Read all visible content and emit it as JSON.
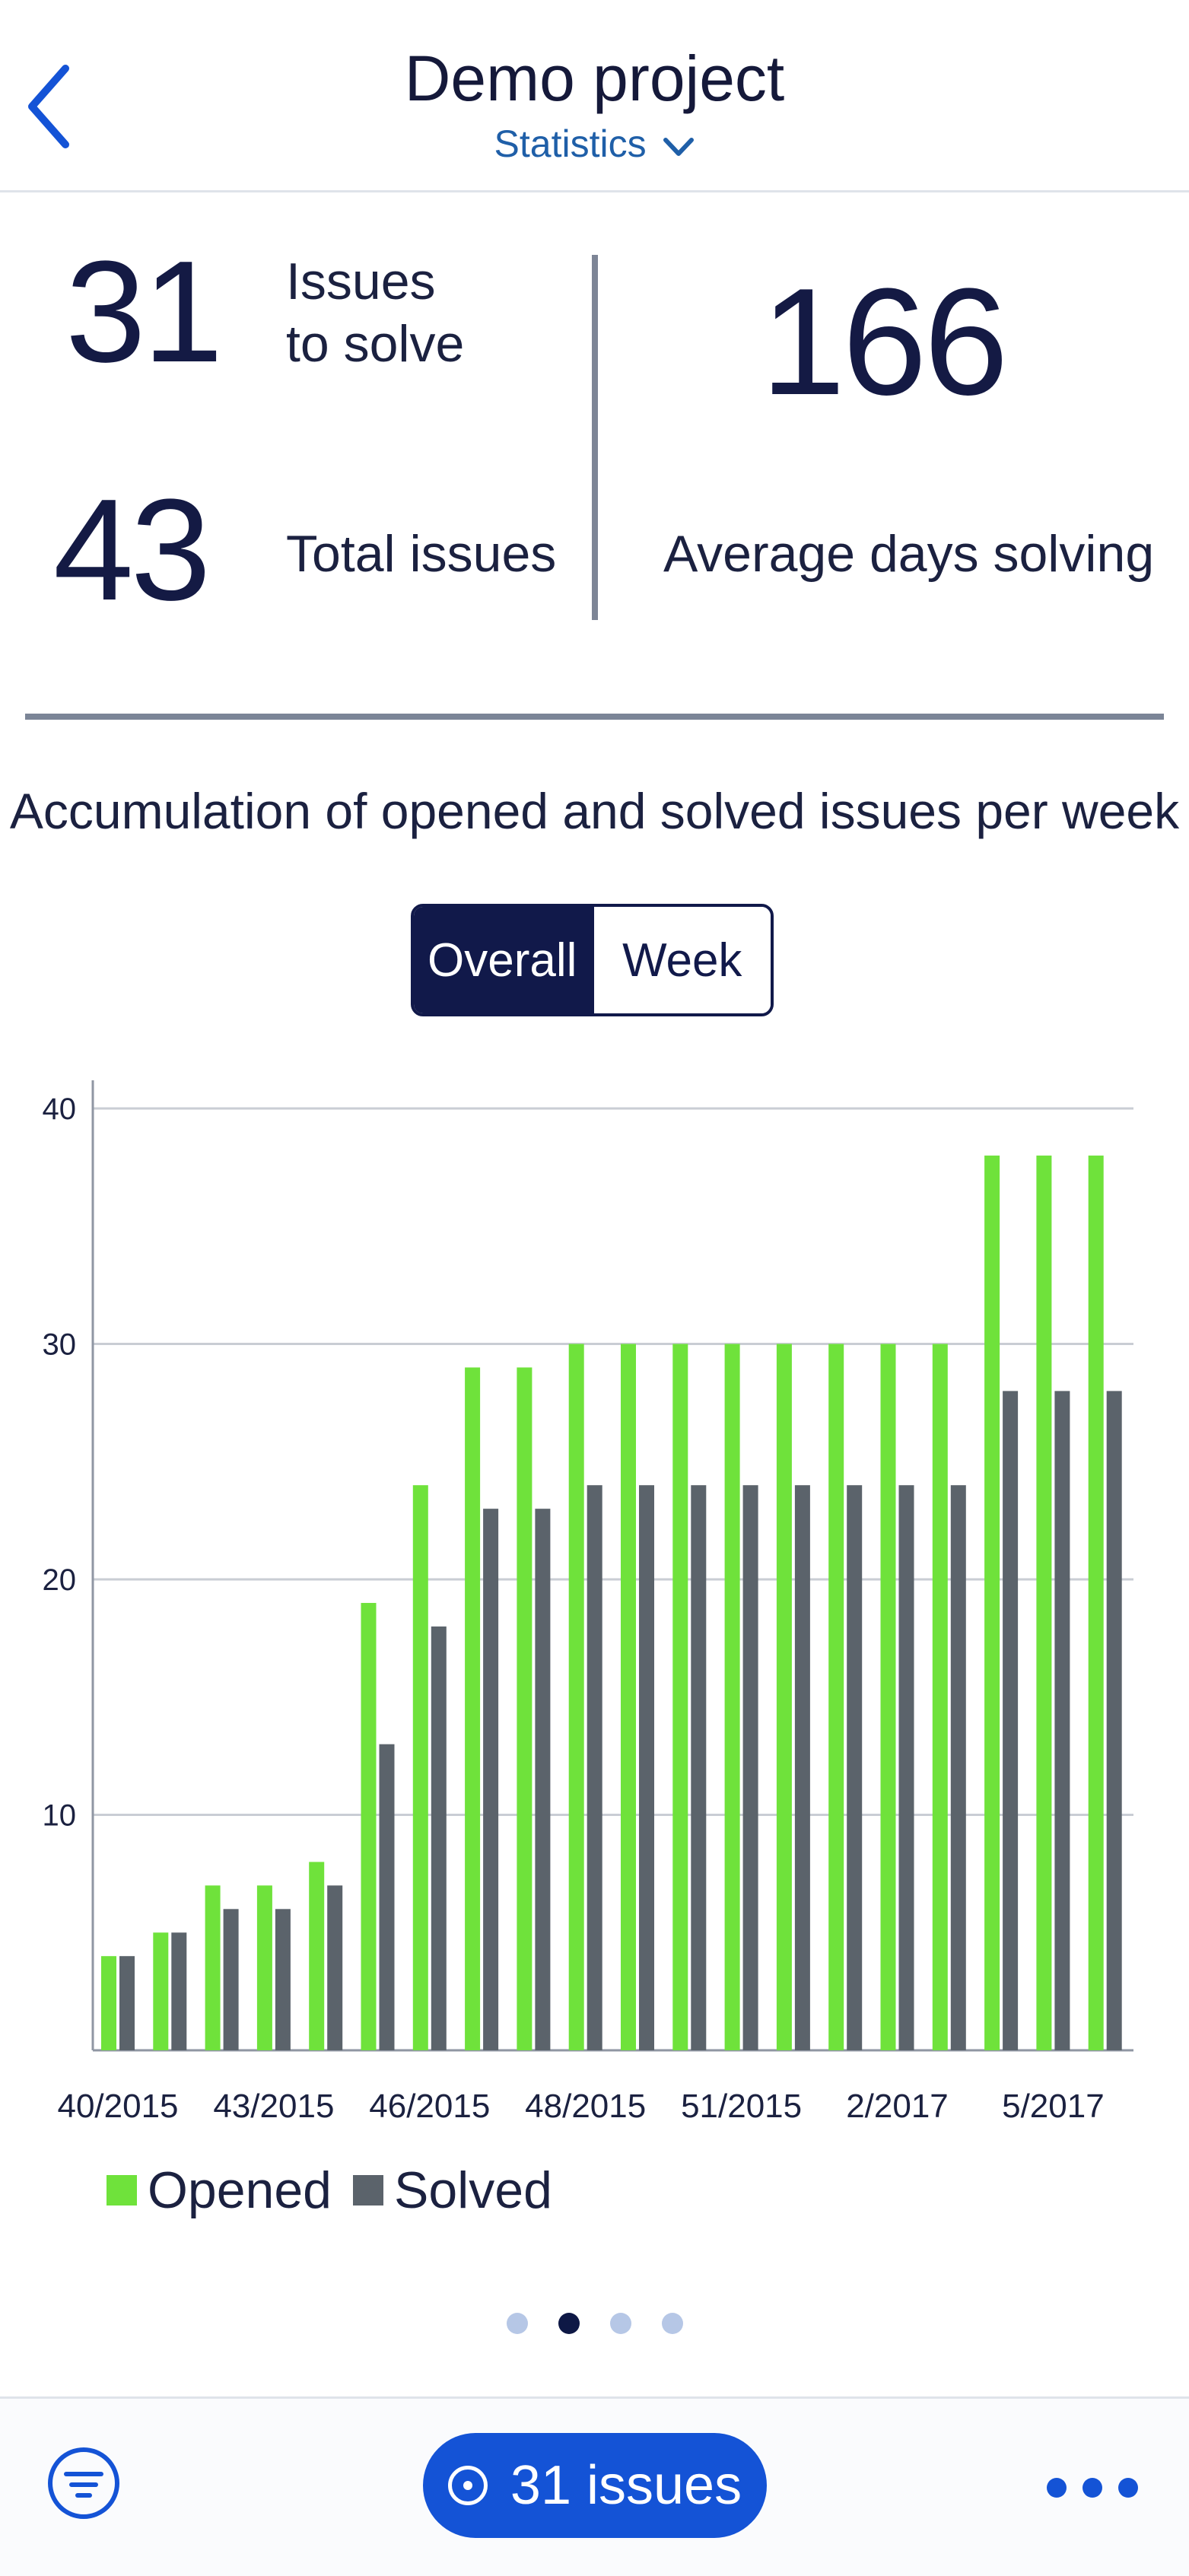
{
  "header": {
    "title": "Demo project",
    "subtitle": "Statistics"
  },
  "stats": {
    "issues_to_solve_value": "31",
    "issues_to_solve_label_line1": "Issues",
    "issues_to_solve_label_line2": "to solve",
    "total_issues_value": "43",
    "total_issues_label": "Total issues",
    "avg_days_value": "166",
    "avg_days_label": "Average days solving"
  },
  "chart_section": {
    "title": "Accumulation of opened and solved issues per week",
    "toggle": {
      "overall": "Overall",
      "week": "Week",
      "selected": "Overall"
    }
  },
  "colors": {
    "opened": "#6fe23b",
    "solved": "#5b636b",
    "accent": "#1453d6",
    "navy": "#11194a"
  },
  "chart_data": {
    "type": "bar",
    "title": "Accumulation of opened and solved issues per week",
    "ylim": [
      0,
      40
    ],
    "yticks": [
      10,
      20,
      30,
      40
    ],
    "grid": true,
    "legend_position": "bottom-left",
    "xtick_labels": [
      "40/2015",
      "43/2015",
      "46/2015",
      "48/2015",
      "51/2015",
      "2/2017",
      "5/2017"
    ],
    "series": [
      {
        "name": "Opened",
        "values": [
          4,
          5,
          7,
          7,
          8,
          19,
          24,
          29,
          29,
          30,
          30,
          30,
          30,
          30,
          30,
          30,
          30,
          38,
          38,
          38
        ]
      },
      {
        "name": "Solved",
        "values": [
          4,
          5,
          6,
          6,
          7,
          13,
          18,
          23,
          23,
          24,
          24,
          24,
          24,
          24,
          24,
          24,
          24,
          28,
          28,
          28
        ]
      }
    ]
  },
  "legend": {
    "opened": "Opened",
    "solved": "Solved"
  },
  "pager": {
    "count": 4,
    "active": 1
  },
  "bottom_bar": {
    "issues_button_label": "31 issues",
    "filter_icon": "filter-icon",
    "more_icon": "more-icon"
  }
}
